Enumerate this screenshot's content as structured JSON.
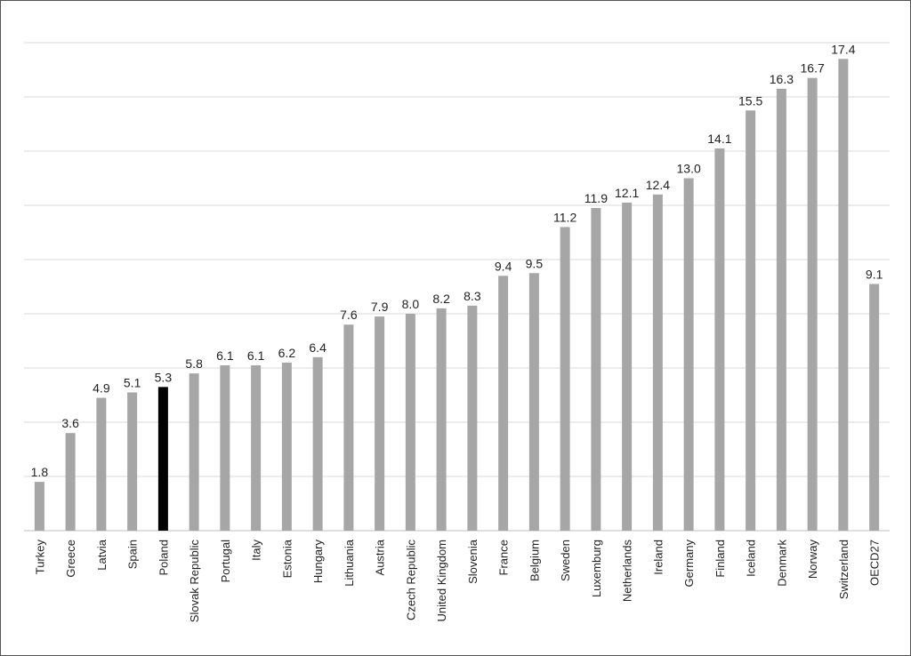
{
  "chart_data": {
    "type": "bar",
    "categories": [
      "Turkey",
      "Greece",
      "Latvia",
      "Spain",
      "Poland",
      "Slovak Republic",
      "Portugal",
      "Italy",
      "Estonia",
      "Hungary",
      "Lithuania",
      "Austria",
      "Czech Republic",
      "United Kingdom",
      "Slovenia",
      "France",
      "Belgium",
      "Sweden",
      "Luxemburg",
      "Netherlands",
      "Ireland",
      "Germany",
      "Finland",
      "Iceland",
      "Denmark",
      "Norway",
      "Switzerland",
      "OECD27"
    ],
    "values": [
      1.8,
      3.6,
      4.9,
      5.1,
      5.3,
      5.8,
      6.1,
      6.1,
      6.2,
      6.4,
      7.6,
      7.9,
      8.0,
      8.2,
      8.3,
      9.4,
      9.5,
      11.2,
      11.9,
      12.1,
      12.4,
      13.0,
      14.1,
      15.5,
      16.3,
      16.7,
      17.4,
      9.1
    ],
    "value_labels": [
      "1.8",
      "3.6",
      "4.9",
      "5.1",
      "5.3",
      "5.8",
      "6.1",
      "6.1",
      "6.2",
      "6.4",
      "7.6",
      "7.9",
      "8.0",
      "8.2",
      "8.3",
      "9.4",
      "9.5",
      "11.2",
      "11.9",
      "12.1",
      "12.4",
      "13.0",
      "14.1",
      "15.5",
      "16.3",
      "16.7",
      "17.4",
      "9.1"
    ],
    "highlight_category": "Poland",
    "ylim": [
      0,
      18
    ],
    "grid": true,
    "legend": "none",
    "colors": {
      "bar": "#a6a6a6",
      "highlight": "#000000",
      "grid": "#d9d9d9"
    }
  }
}
